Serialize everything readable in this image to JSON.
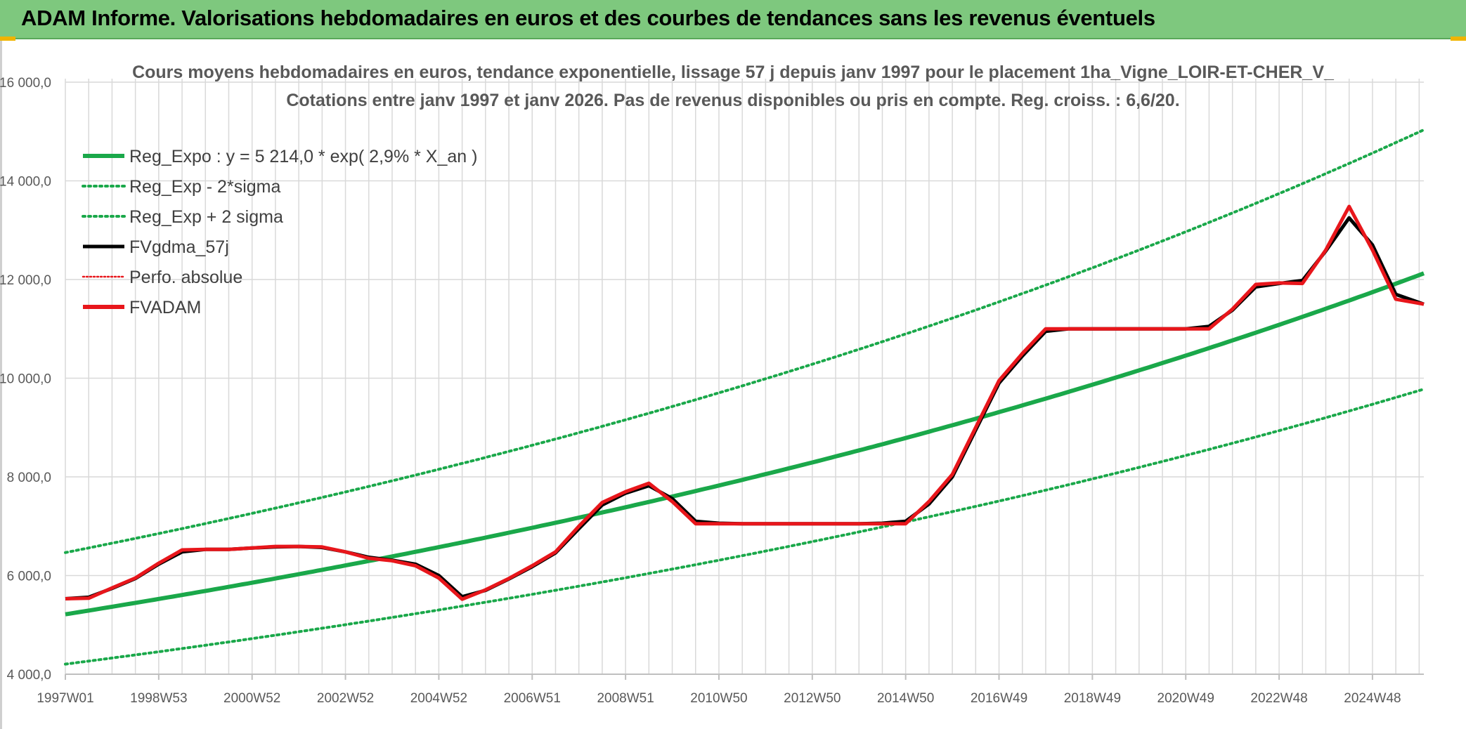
{
  "header": {
    "title": "ADAM Informe. Valorisations hebdomadaires en euros et des courbes de tendances sans les revenus éventuels"
  },
  "colors": {
    "header_bg": "#7ec87e",
    "reg_green": "#1aa84a",
    "fv_black": "#000000",
    "fvadam_red": "#e8161b",
    "grid": "#d9d9d9"
  },
  "chart_data": {
    "type": "line",
    "title_line1": "Cours moyens hebdomadaires en euros, tendance exponentielle, lissage 57 j depuis janv 1997 pour le placement 1ha_Vigne_LOIR-ET-CHER_V_",
    "title_line2": "Cotations entre janv 1997 et janv 2026. Pas de revenus disponibles ou pris en compte. Reg. croiss. : 6,6/20.",
    "xlim": [
      1997.0,
      2026.1
    ],
    "ylim": [
      4000,
      16000
    ],
    "y_ticks": [
      4000,
      6000,
      8000,
      10000,
      12000,
      14000,
      16000
    ],
    "y_tick_labels": [
      "4 000,0",
      "6 000,0",
      "8 000,0",
      "10 000,0",
      "12 000,0",
      "14 000,0",
      "16 000,0"
    ],
    "x_tick_labels": [
      "1997W01",
      "1998W53",
      "2000W52",
      "2002W52",
      "2004W52",
      "2006W51",
      "2008W51",
      "2010W50",
      "2012W50",
      "2014W50",
      "2016W49",
      "2018W49",
      "2020W49",
      "2022W48",
      "2024W48"
    ],
    "x_tick_positions": [
      1997.0,
      1999.0,
      2001.0,
      2003.0,
      2005.0,
      2007.0,
      2009.0,
      2011.0,
      2013.0,
      2015.0,
      2017.0,
      2019.0,
      2021.0,
      2023.0,
      2025.0
    ],
    "grid": true,
    "legend_position": "top-left",
    "legend": [
      {
        "label": "Reg_Expo : y = 5 214,0 * exp( 2,9% *  X_an )",
        "series": "reg_expo"
      },
      {
        "label": "Reg_Exp - 2*sigma",
        "series": "reg_minus"
      },
      {
        "label": "Reg_Exp + 2 sigma",
        "series": "reg_plus"
      },
      {
        "label": "FVgdma_57j",
        "series": "fvgdma"
      },
      {
        "label": "Perfo. absolue",
        "series": "perfo"
      },
      {
        "label": "FVADAM",
        "series": "fvadam"
      }
    ],
    "regression": {
      "a": 5214.0,
      "growth": 0.029,
      "x0": 1997.0,
      "sigma_factor": 1.24
    },
    "series": [
      {
        "name": "FVADAM",
        "x": [
          1997.0,
          1997.5,
          1998.0,
          1998.5,
          1999.0,
          1999.5,
          2000.0,
          2000.5,
          2001.0,
          2001.5,
          2002.0,
          2002.5,
          2003.0,
          2003.5,
          2004.0,
          2004.5,
          2005.0,
          2005.5,
          2006.0,
          2006.5,
          2007.0,
          2007.5,
          2008.0,
          2008.5,
          2009.0,
          2009.5,
          2010.0,
          2010.5,
          2011.0,
          2011.5,
          2012.0,
          2012.5,
          2013.0,
          2013.5,
          2014.0,
          2014.5,
          2015.0,
          2015.5,
          2016.0,
          2016.5,
          2017.0,
          2017.5,
          2018.0,
          2018.5,
          2019.0,
          2019.5,
          2020.0,
          2020.5,
          2021.0,
          2021.5,
          2022.0,
          2022.5,
          2023.0,
          2023.5,
          2024.0,
          2024.5,
          2025.0,
          2025.5,
          2026.1
        ],
        "values": [
          5530,
          5540,
          5750,
          5950,
          6250,
          6520,
          6530,
          6530,
          6560,
          6590,
          6590,
          6580,
          6480,
          6350,
          6300,
          6200,
          5950,
          5520,
          5710,
          5940,
          6200,
          6480,
          7000,
          7480,
          7700,
          7870,
          7500,
          7050,
          7050,
          7050,
          7050,
          7050,
          7050,
          7050,
          7050,
          7050,
          7050,
          7500,
          8050,
          9000,
          9950,
          10500,
          11000,
          11000,
          11000,
          11000,
          11000,
          11000,
          11000,
          11000,
          11400,
          11900,
          11930,
          11920,
          12600,
          13480,
          12600,
          11600,
          11500
        ]
      },
      {
        "name": "FVgdma_57j",
        "x": [
          1997.0,
          1997.5,
          1998.0,
          1998.5,
          1999.0,
          1999.5,
          2000.0,
          2000.5,
          2001.0,
          2001.5,
          2002.0,
          2002.5,
          2003.0,
          2003.5,
          2004.0,
          2004.5,
          2005.0,
          2005.5,
          2006.0,
          2006.5,
          2007.0,
          2007.5,
          2008.0,
          2008.5,
          2009.0,
          2009.5,
          2010.0,
          2010.5,
          2011.0,
          2011.5,
          2012.0,
          2012.5,
          2013.0,
          2013.5,
          2014.0,
          2014.5,
          2015.0,
          2015.5,
          2016.0,
          2016.5,
          2017.0,
          2017.5,
          2018.0,
          2018.5,
          2019.0,
          2019.5,
          2020.0,
          2020.5,
          2021.0,
          2021.5,
          2022.0,
          2022.5,
          2023.0,
          2023.5,
          2024.0,
          2024.5,
          2025.0,
          2025.5,
          2026.1
        ],
        "values": [
          5530,
          5560,
          5740,
          5940,
          6230,
          6480,
          6530,
          6530,
          6560,
          6580,
          6590,
          6570,
          6480,
          6370,
          6310,
          6230,
          6000,
          5570,
          5700,
          5930,
          6180,
          6460,
          6950,
          7430,
          7670,
          7820,
          7560,
          7100,
          7060,
          7050,
          7050,
          7050,
          7050,
          7050,
          7050,
          7060,
          7100,
          7450,
          8000,
          8950,
          9900,
          10450,
          10950,
          11000,
          11000,
          11000,
          11000,
          11000,
          11000,
          11050,
          11380,
          11850,
          11920,
          11980,
          12580,
          13250,
          12700,
          11700,
          11500
        ]
      }
    ]
  }
}
